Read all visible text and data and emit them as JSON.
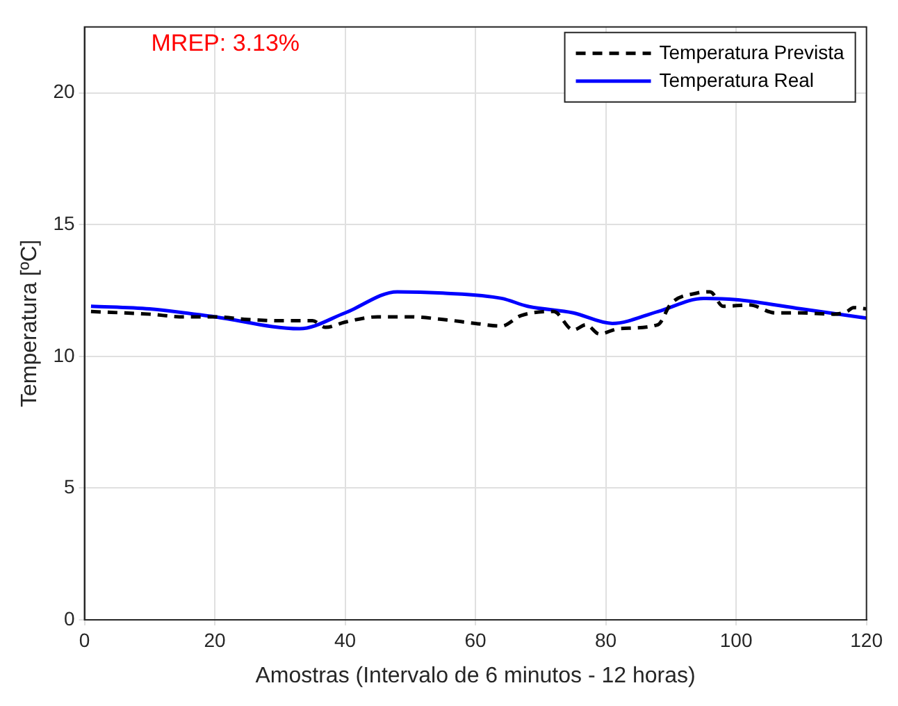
{
  "chart_data": {
    "type": "line",
    "xlabel": "Amostras (Intervalo de 6 minutos - 12 horas)",
    "ylabel": "Temperatura [ºC]",
    "annotations": [
      "MREP: 3.13%"
    ],
    "xlim": [
      0,
      120
    ],
    "ylim": [
      0,
      22.5
    ],
    "xticks": [
      0,
      20,
      40,
      60,
      80,
      100,
      120
    ],
    "yticks": [
      0,
      5,
      10,
      15,
      20
    ],
    "grid": true,
    "legend": "top right",
    "series": [
      {
        "name": "Temperatura Prevista",
        "color": "#000000",
        "line_style": "dashed",
        "x": [
          1,
          10,
          15,
          20,
          25,
          30,
          35,
          37,
          40,
          45,
          50,
          55,
          60,
          64,
          67,
          72,
          75,
          77,
          79,
          82,
          88,
          90,
          94,
          96,
          98,
          102,
          106,
          110,
          115,
          117,
          118,
          120
        ],
        "values": [
          11.7,
          11.6,
          11.5,
          11.5,
          11.4,
          11.35,
          11.35,
          11.1,
          11.3,
          11.5,
          11.5,
          11.4,
          11.25,
          11.15,
          11.55,
          11.7,
          11.0,
          11.2,
          10.85,
          11.05,
          11.2,
          12.0,
          12.4,
          12.45,
          11.9,
          11.95,
          11.65,
          11.65,
          11.6,
          11.7,
          11.85,
          11.8
        ]
      },
      {
        "name": "Temperatura Real",
        "color": "#0000ff",
        "line_style": "solid",
        "x": [
          1,
          10,
          20,
          33,
          40,
          48,
          55,
          64,
          68,
          75,
          81,
          88,
          95,
          100,
          110,
          120
        ],
        "values": [
          11.9,
          11.8,
          11.5,
          11.05,
          11.65,
          12.45,
          12.4,
          12.2,
          11.9,
          11.65,
          11.25,
          11.7,
          12.2,
          12.15,
          11.8,
          11.45
        ]
      }
    ]
  }
}
